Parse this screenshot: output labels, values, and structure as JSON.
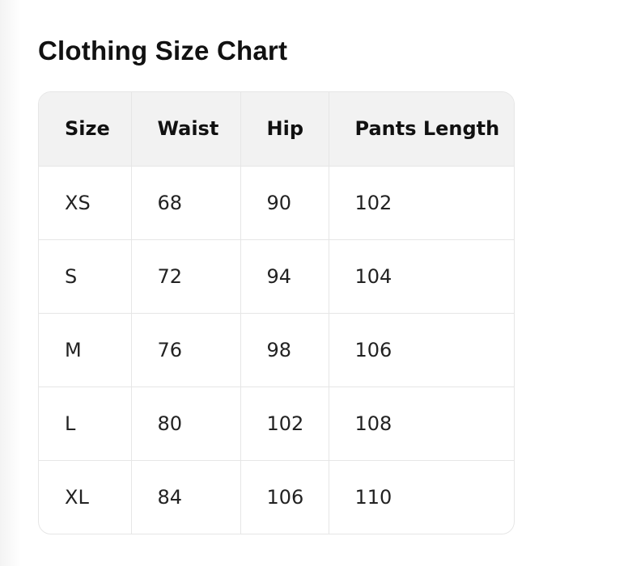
{
  "title": "Clothing Size Chart",
  "table": {
    "headers": [
      "Size",
      "Waist",
      "Hip",
      "Pants Length"
    ],
    "rows": [
      [
        "XS",
        "68",
        "90",
        "102"
      ],
      [
        "S",
        "72",
        "94",
        "104"
      ],
      [
        "M",
        "76",
        "98",
        "106"
      ],
      [
        "L",
        "80",
        "102",
        "108"
      ],
      [
        "XL",
        "84",
        "106",
        "110"
      ]
    ]
  }
}
